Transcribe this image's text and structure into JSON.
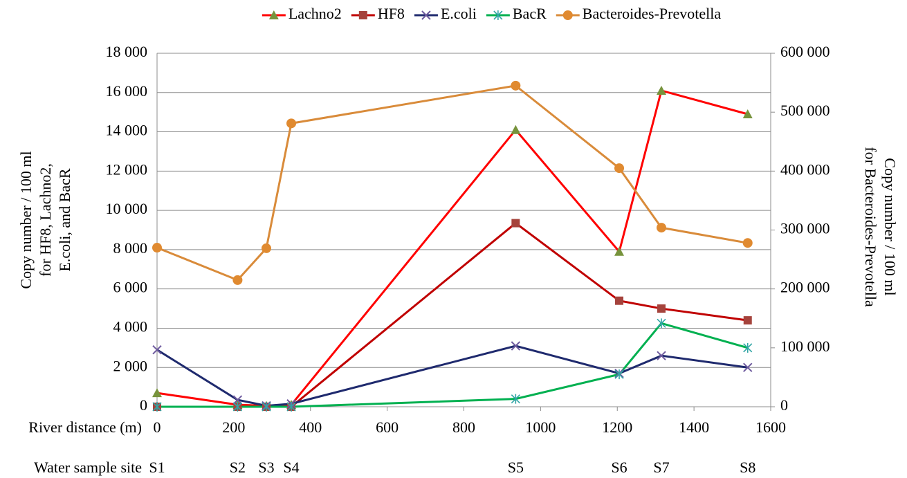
{
  "chart_data": {
    "type": "line",
    "x": [
      0,
      210,
      285,
      350,
      935,
      1205,
      1315,
      1540
    ],
    "site_labels": [
      "S1",
      "S2",
      "S3",
      "S4",
      "S5",
      "S6",
      "S7",
      "S8"
    ],
    "xlabel": "River distance (m)",
    "site_axis_label": "Water sample site",
    "ylabel": [
      "Copy number / 100 ml",
      "for HF8, Lachno2,",
      "E.coli, and BacR"
    ],
    "y2label": [
      "Copy number / 100 ml",
      "for Bacteroides-Prevotella"
    ],
    "xlim": [
      0,
      1600
    ],
    "xticks": [
      0,
      200,
      400,
      600,
      800,
      1000,
      1200,
      1400,
      1600
    ],
    "ylim": [
      0,
      18000
    ],
    "yticks": [
      0,
      {
        "value": 2000,
        "label": "2 000"
      },
      {
        "value": 4000,
        "label": "4 000"
      },
      {
        "value": 6000,
        "label": "6 000"
      },
      {
        "value": 8000,
        "label": "8 000"
      },
      {
        "value": 10000,
        "label": "10 000"
      },
      {
        "value": 12000,
        "label": "12 000"
      },
      {
        "value": 14000,
        "label": "14 000"
      },
      {
        "value": 16000,
        "label": "16 000"
      },
      {
        "value": 18000,
        "label": "18 000"
      }
    ],
    "y2lim": [
      0,
      600000
    ],
    "y2ticks": [
      0,
      {
        "value": 100000,
        "label": "100 000"
      },
      {
        "value": 200000,
        "label": "200 000"
      },
      {
        "value": 300000,
        "label": "300 000"
      },
      {
        "value": 400000,
        "label": "400 000"
      },
      {
        "value": 500000,
        "label": "500 000"
      },
      {
        "value": 600000,
        "label": "600 000"
      }
    ],
    "grid": true,
    "legend": "top",
    "series": [
      {
        "name": "Lachno2",
        "color": "#ff0000",
        "marker": "triangle",
        "marker_color": "#77933c",
        "values": [
          700,
          100,
          50,
          100,
          14100,
          7900,
          16100,
          14900
        ]
      },
      {
        "name": "HF8",
        "color": "#c00000",
        "marker": "square",
        "marker_color": "#a5433c",
        "values": [
          0,
          0,
          0,
          0,
          9350,
          5400,
          5000,
          4400
        ]
      },
      {
        "name": "E.coli",
        "color": "#1f2a6e",
        "marker": "x",
        "marker_color": "#6e5a9e",
        "values": [
          2900,
          350,
          50,
          150,
          3100,
          1700,
          2600,
          2000
        ]
      },
      {
        "name": "BacR",
        "color": "#00b050",
        "marker": "asterisk",
        "marker_color": "#31a5a5",
        "values": [
          0,
          0,
          0,
          0,
          400,
          1650,
          4250,
          3000
        ]
      },
      {
        "name": "Bacteroides-Prevotella",
        "color": "#d98b3a",
        "marker": "circle",
        "marker_color": "#e08a30",
        "axis": "y2",
        "values": [
          270000,
          215000,
          269000,
          481000,
          545000,
          405000,
          304000,
          278000
        ]
      }
    ]
  }
}
